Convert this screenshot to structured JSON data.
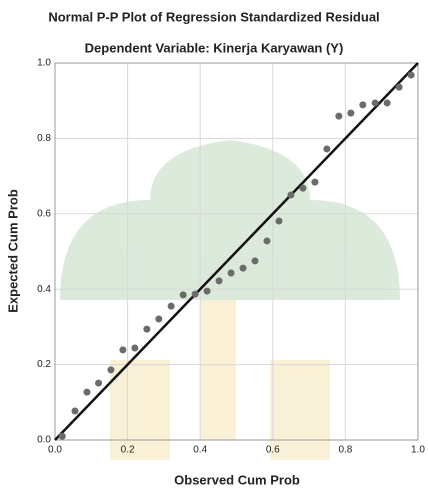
{
  "chart_data": {
    "type": "scatter",
    "title": "Normal P-P Plot of Regression Standardized Residual",
    "subtitle": "Dependent Variable: Kinerja Karyawan (Y)",
    "x_label": "Observed Cum Prob",
    "y_label": "Expected Cum Prob",
    "x": [
      0.02,
      0.055,
      0.088,
      0.12,
      0.154,
      0.187,
      0.22,
      0.253,
      0.286,
      0.32,
      0.353,
      0.386,
      0.419,
      0.452,
      0.485,
      0.518,
      0.551,
      0.584,
      0.617,
      0.65,
      0.683,
      0.716,
      0.749,
      0.782,
      0.815,
      0.848,
      0.882,
      0.915,
      0.948,
      0.981
    ],
    "values": [
      0.01,
      0.077,
      0.127,
      0.151,
      0.186,
      0.239,
      0.244,
      0.294,
      0.321,
      0.355,
      0.385,
      0.387,
      0.395,
      0.422,
      0.443,
      0.456,
      0.475,
      0.528,
      0.581,
      0.65,
      0.668,
      0.684,
      0.772,
      0.859,
      0.867,
      0.889,
      0.894,
      0.894,
      0.936,
      0.968
    ],
    "color": "#6b6b6b",
    "line_color": "#111111",
    "xlim": [
      0,
      1
    ],
    "ylim": [
      0,
      1
    ],
    "xticks": [
      {
        "value": 0,
        "label": "0.0"
      },
      0.2,
      0.4,
      0.6,
      0.8,
      {
        "value": 1,
        "label": "1.0"
      }
    ],
    "yticks": [
      {
        "value": 0,
        "label": "0.0"
      },
      0.2,
      0.4,
      0.6,
      0.8,
      {
        "value": 1,
        "label": "1.0"
      }
    ],
    "grid": true
  }
}
